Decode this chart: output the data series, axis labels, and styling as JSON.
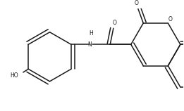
{
  "figsize": [
    2.61,
    1.58
  ],
  "dpi": 100,
  "bg": "#ffffff",
  "lc": "#1a1a1a",
  "lw": 1.1,
  "atoms": {
    "N": "N",
    "O_amide": "O",
    "O_ring": "O",
    "O_lactone": "O",
    "OH": "OH",
    "HO": "HO"
  },
  "font_size": 5.5
}
